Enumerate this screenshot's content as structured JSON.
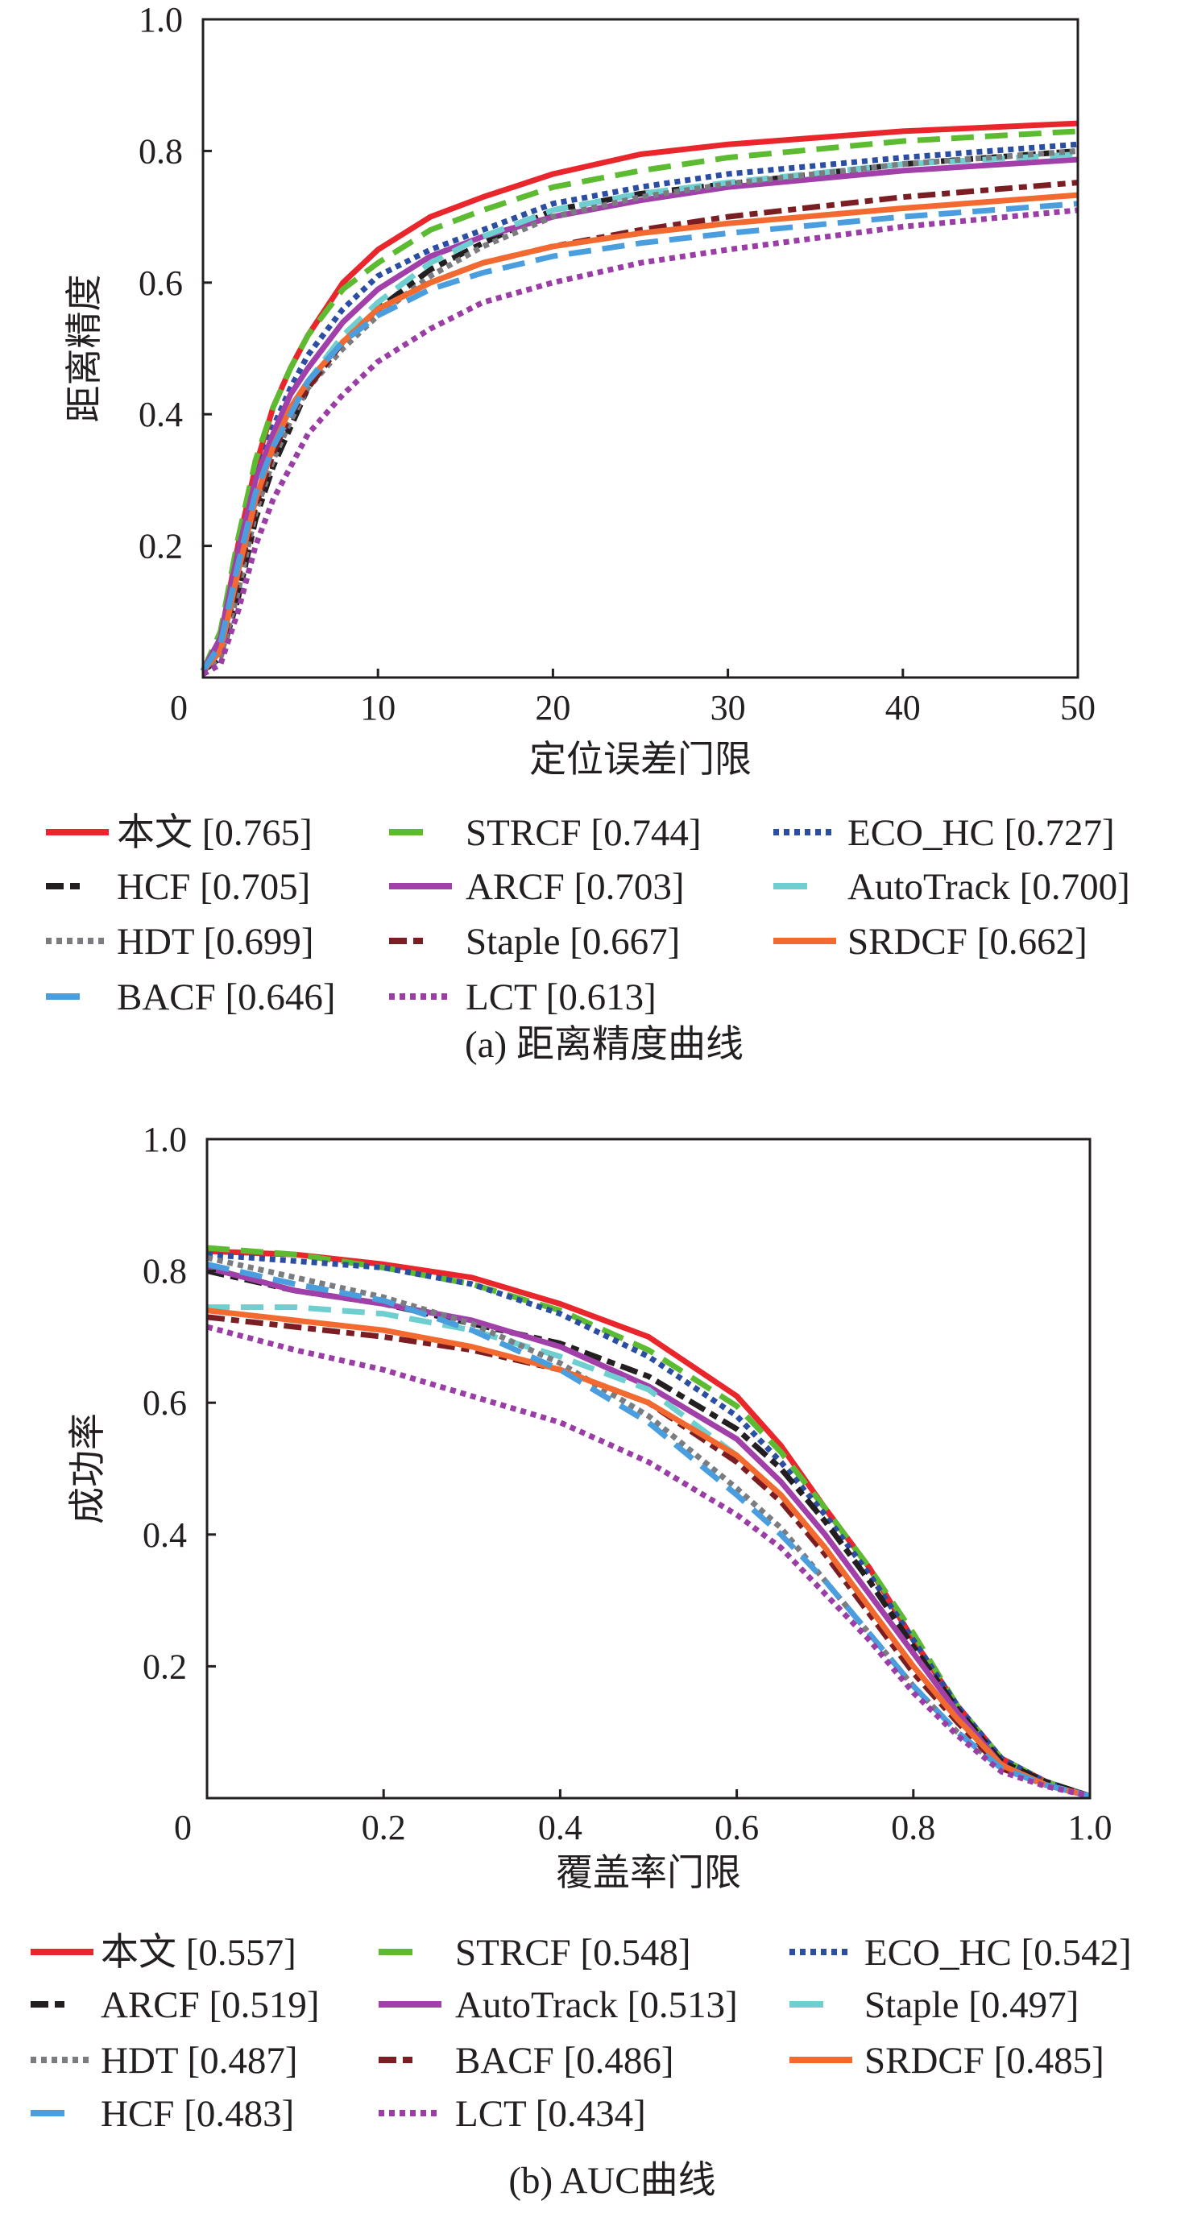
{
  "chart_data": [
    {
      "type": "line",
      "caption": "(a) 距离精度曲线",
      "xlabel": "定位误差门限",
      "ylabel": "距离精度",
      "xlim": [
        0,
        50
      ],
      "ylim": [
        0,
        1.0
      ],
      "xticks": [
        0,
        10,
        20,
        30,
        40,
        50
      ],
      "xtick_labels": [
        "0",
        "10",
        "20",
        "30",
        "40",
        "50"
      ],
      "yticks": [
        0.2,
        0.4,
        0.6,
        0.8,
        1.0
      ],
      "ytick_labels": [
        "0.2",
        "0.4",
        "0.6",
        "0.8",
        "1.0"
      ],
      "grid": false,
      "legend_placement": "bottom",
      "x": [
        0,
        1,
        2,
        3,
        4,
        5,
        6,
        8,
        10,
        13,
        16,
        20,
        25,
        30,
        40,
        50
      ],
      "series": [
        {
          "name": "本文 [0.765]",
          "color": "#e8262b",
          "style": "solid",
          "values": [
            0.01,
            0.06,
            0.2,
            0.32,
            0.41,
            0.47,
            0.52,
            0.6,
            0.65,
            0.7,
            0.73,
            0.765,
            0.795,
            0.81,
            0.83,
            0.842
          ]
        },
        {
          "name": "STRCF [0.744]",
          "color": "#5dbb32",
          "style": "dashed",
          "values": [
            0.01,
            0.07,
            0.21,
            0.33,
            0.41,
            0.47,
            0.52,
            0.59,
            0.63,
            0.68,
            0.71,
            0.745,
            0.77,
            0.79,
            0.815,
            0.83
          ]
        },
        {
          "name": "ECO_HC [0.727]",
          "color": "#2b4ea2",
          "style": "dotted",
          "values": [
            0.01,
            0.06,
            0.19,
            0.3,
            0.38,
            0.44,
            0.49,
            0.56,
            0.61,
            0.65,
            0.68,
            0.72,
            0.745,
            0.765,
            0.79,
            0.81
          ]
        },
        {
          "name": "HCF [0.705]",
          "color": "#231f20",
          "style": "dashdot",
          "values": [
            0.01,
            0.03,
            0.12,
            0.24,
            0.32,
            0.38,
            0.44,
            0.51,
            0.56,
            0.62,
            0.66,
            0.71,
            0.735,
            0.75,
            0.78,
            0.8
          ]
        },
        {
          "name": "ARCF [0.703]",
          "color": "#a040a8",
          "style": "solid",
          "values": [
            0.01,
            0.06,
            0.19,
            0.3,
            0.37,
            0.43,
            0.47,
            0.54,
            0.59,
            0.64,
            0.67,
            0.7,
            0.725,
            0.745,
            0.77,
            0.787
          ]
        },
        {
          "name": "AutoTrack [0.700]",
          "color": "#6fcfd0",
          "style": "dashed",
          "values": [
            0.01,
            0.05,
            0.17,
            0.28,
            0.35,
            0.41,
            0.45,
            0.52,
            0.57,
            0.63,
            0.67,
            0.71,
            0.735,
            0.752,
            0.78,
            0.795
          ]
        },
        {
          "name": "HDT [0.699]",
          "color": "#7a7c80",
          "style": "dotted",
          "values": [
            0.01,
            0.03,
            0.13,
            0.25,
            0.33,
            0.39,
            0.44,
            0.5,
            0.55,
            0.61,
            0.655,
            0.7,
            0.73,
            0.75,
            0.78,
            0.8
          ]
        },
        {
          "name": "Staple [0.667]",
          "color": "#7a1e24",
          "style": "dashdot",
          "values": [
            0.01,
            0.04,
            0.15,
            0.26,
            0.34,
            0.4,
            0.44,
            0.51,
            0.56,
            0.6,
            0.63,
            0.655,
            0.68,
            0.7,
            0.73,
            0.752
          ]
        },
        {
          "name": "SRDCF [0.662]",
          "color": "#f26a30",
          "style": "solid",
          "values": [
            0.01,
            0.04,
            0.16,
            0.27,
            0.35,
            0.41,
            0.45,
            0.51,
            0.56,
            0.6,
            0.63,
            0.655,
            0.675,
            0.69,
            0.713,
            0.733
          ]
        },
        {
          "name": "BACF [0.646]",
          "color": "#4a9ede",
          "style": "dashed",
          "values": [
            0.01,
            0.05,
            0.17,
            0.28,
            0.35,
            0.4,
            0.45,
            0.51,
            0.55,
            0.59,
            0.615,
            0.64,
            0.66,
            0.675,
            0.7,
            0.72
          ]
        },
        {
          "name": "LCT [0.613]",
          "color": "#9a3ea6",
          "style": "dotted",
          "values": [
            0.005,
            0.02,
            0.1,
            0.2,
            0.27,
            0.32,
            0.37,
            0.43,
            0.48,
            0.53,
            0.57,
            0.6,
            0.63,
            0.65,
            0.685,
            0.71
          ]
        }
      ]
    },
    {
      "type": "line",
      "caption": "(b) AUC曲线",
      "xlabel": "覆盖率门限",
      "ylabel": "成功率",
      "xlim": [
        0,
        1.0
      ],
      "ylim": [
        0,
        1.0
      ],
      "xticks": [
        0,
        0.2,
        0.4,
        0.6,
        0.8,
        1.0
      ],
      "xtick_labels": [
        "0",
        "0.2",
        "0.4",
        "0.6",
        "0.8",
        "1.0"
      ],
      "yticks": [
        0.2,
        0.4,
        0.6,
        0.8,
        1.0
      ],
      "ytick_labels": [
        "0.2",
        "0.4",
        "0.6",
        "0.8",
        "1.0"
      ],
      "grid": false,
      "legend_placement": "bottom",
      "x": [
        0,
        0.1,
        0.2,
        0.3,
        0.4,
        0.5,
        0.6,
        0.65,
        0.7,
        0.75,
        0.8,
        0.85,
        0.9,
        0.95,
        1.0
      ],
      "series": [
        {
          "name": "本文 [0.557]",
          "color": "#e8262b",
          "style": "solid",
          "values": [
            0.83,
            0.825,
            0.81,
            0.79,
            0.75,
            0.7,
            0.61,
            0.535,
            0.44,
            0.35,
            0.24,
            0.14,
            0.06,
            0.025,
            0.003
          ]
        },
        {
          "name": "STRCF [0.548]",
          "color": "#5dbb32",
          "style": "dashed",
          "values": [
            0.835,
            0.825,
            0.805,
            0.78,
            0.74,
            0.68,
            0.595,
            0.525,
            0.44,
            0.35,
            0.25,
            0.14,
            0.06,
            0.025,
            0.003
          ]
        },
        {
          "name": "ECO_HC [0.542]",
          "color": "#2b4ea2",
          "style": "dotted",
          "values": [
            0.825,
            0.815,
            0.805,
            0.78,
            0.735,
            0.67,
            0.58,
            0.51,
            0.43,
            0.34,
            0.24,
            0.14,
            0.06,
            0.025,
            0.003
          ]
        },
        {
          "name": "ARCF [0.519]",
          "color": "#231f20",
          "style": "dashdot",
          "values": [
            0.8,
            0.77,
            0.75,
            0.72,
            0.69,
            0.64,
            0.56,
            0.5,
            0.42,
            0.33,
            0.23,
            0.135,
            0.055,
            0.025,
            0.003
          ]
        },
        {
          "name": "AutoTrack [0.513]",
          "color": "#a040a8",
          "style": "solid",
          "values": [
            0.805,
            0.77,
            0.75,
            0.725,
            0.685,
            0.625,
            0.545,
            0.48,
            0.4,
            0.31,
            0.22,
            0.13,
            0.05,
            0.02,
            0.003
          ]
        },
        {
          "name": "Staple [0.497]",
          "color": "#6fcfd0",
          "style": "dashed",
          "values": [
            0.745,
            0.745,
            0.735,
            0.71,
            0.67,
            0.62,
            0.52,
            0.46,
            0.38,
            0.29,
            0.2,
            0.12,
            0.05,
            0.02,
            0.003
          ]
        },
        {
          "name": "HDT [0.487]",
          "color": "#7a7c80",
          "style": "dotted",
          "values": [
            0.82,
            0.79,
            0.76,
            0.72,
            0.66,
            0.58,
            0.47,
            0.41,
            0.33,
            0.25,
            0.17,
            0.1,
            0.045,
            0.02,
            0.003
          ]
        },
        {
          "name": "BACF [0.486]",
          "color": "#7a1e24",
          "style": "dashdot",
          "values": [
            0.73,
            0.715,
            0.7,
            0.68,
            0.65,
            0.6,
            0.51,
            0.45,
            0.37,
            0.28,
            0.19,
            0.115,
            0.045,
            0.02,
            0.003
          ]
        },
        {
          "name": "SRDCF [0.485]",
          "color": "#f26a30",
          "style": "solid",
          "values": [
            0.74,
            0.725,
            0.71,
            0.685,
            0.65,
            0.6,
            0.52,
            0.46,
            0.38,
            0.29,
            0.2,
            0.12,
            0.05,
            0.02,
            0.003
          ]
        },
        {
          "name": "HCF [0.483]",
          "color": "#4a9ede",
          "style": "dashed",
          "values": [
            0.81,
            0.78,
            0.755,
            0.71,
            0.65,
            0.57,
            0.46,
            0.4,
            0.33,
            0.25,
            0.17,
            0.1,
            0.045,
            0.02,
            0.003
          ]
        },
        {
          "name": "LCT [0.434]",
          "color": "#9a3ea6",
          "style": "dotted",
          "values": [
            0.715,
            0.68,
            0.65,
            0.61,
            0.57,
            0.51,
            0.43,
            0.38,
            0.31,
            0.24,
            0.16,
            0.095,
            0.04,
            0.018,
            0.003
          ]
        }
      ]
    }
  ]
}
